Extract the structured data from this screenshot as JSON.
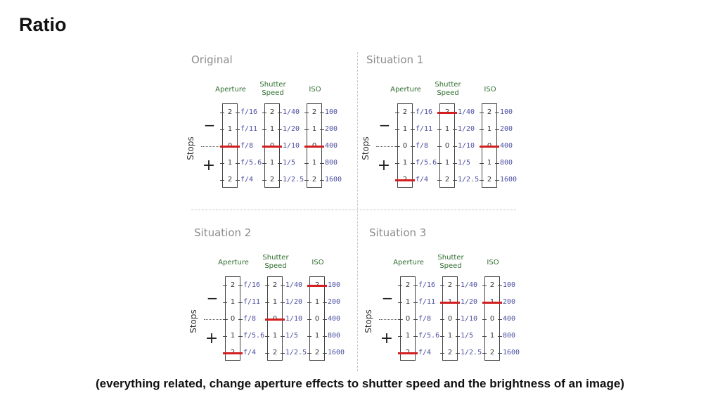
{
  "slide": {
    "title": "Ratio",
    "caption": "(everything related, change aperture effects to shutter speed and the brightness of an image)"
  },
  "labels": {
    "aperture": "Aperture",
    "shutter_line1": "Shutter",
    "shutter_line2": "Speed",
    "iso": "ISO",
    "stops": "Stops",
    "minus": "−",
    "plus": "+"
  },
  "step_labels": [
    "2",
    "1",
    "0",
    "1",
    "2"
  ],
  "scales": {
    "aperture": [
      "f/16",
      "f/11",
      "f/8",
      "f/5.6",
      "f/4"
    ],
    "shutter": [
      "1/40",
      "1/20",
      "1/10",
      "1/5",
      "1/2.5"
    ],
    "iso": [
      "100",
      "200",
      "400",
      "800",
      "1600"
    ]
  },
  "panels": [
    {
      "title": "Original",
      "selected": {
        "aperture": "f/8",
        "shutter": "1/10",
        "iso": "400"
      }
    },
    {
      "title": "Situation 1",
      "selected": {
        "aperture": "f/4",
        "shutter": "1/40",
        "iso": "400"
      }
    },
    {
      "title": "Situation 2",
      "selected": {
        "aperture": "f/4",
        "shutter": "1/10",
        "iso": "100"
      }
    },
    {
      "title": "Situation 3",
      "selected": {
        "aperture": "f/4",
        "shutter": "1/20",
        "iso": "200"
      }
    }
  ],
  "colors": {
    "marker": "#d21f1f",
    "heading_green": "#2f6e2f",
    "value_blue": "#4a4ea0",
    "panel_title_gray": "#8c8c8c"
  }
}
